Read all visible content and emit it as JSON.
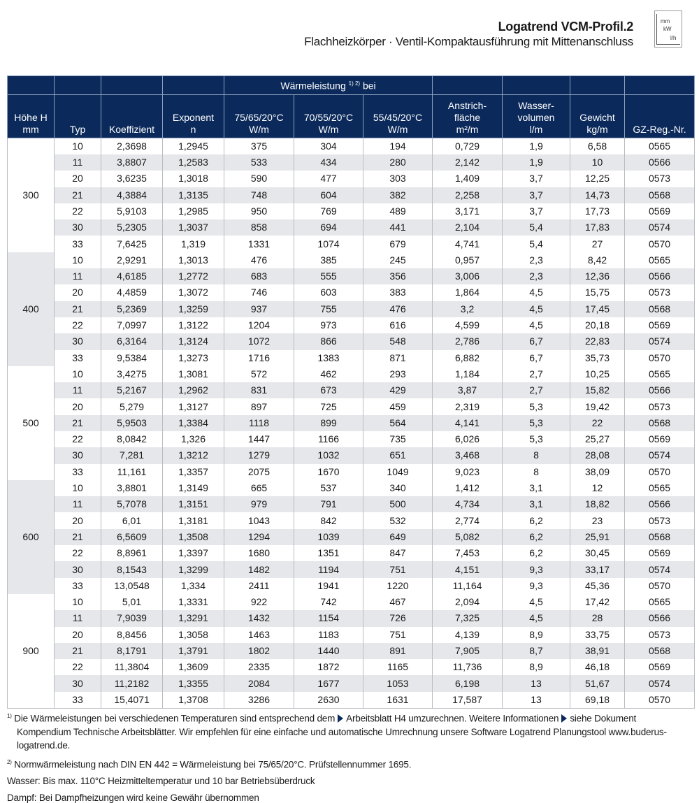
{
  "header": {
    "title": "Logatrend VCM-Profil.2",
    "subtitle": "Flachheizkörper · Ventil-Kompaktausführung mit Mittenanschluss",
    "icon": {
      "name": "units-icon",
      "labels": [
        "mm",
        "kW",
        "l/h"
      ]
    }
  },
  "table": {
    "group_header": "Wärmeleistung",
    "group_header_sup": "1) 2)",
    "group_header_suffix": "bei",
    "columns": [
      "Höhe H\nmm",
      "Typ",
      "Koeffizient",
      "Exponent\nn",
      "75/65/20°C\nW/m",
      "70/55/20°C\nW/m",
      "55/45/20°C\nW/m",
      "Anstrich-\nfläche\nm²/m",
      "Wasser-\nvolumen\nl/m",
      "Gewicht\nkg/m",
      "GZ-Reg.-Nr."
    ],
    "groups": [
      {
        "height": "300",
        "rows": [
          [
            "10",
            "2,3698",
            "1,2945",
            "375",
            "304",
            "194",
            "0,729",
            "1,9",
            "6,58",
            "0565"
          ],
          [
            "11",
            "3,8807",
            "1,2583",
            "533",
            "434",
            "280",
            "2,142",
            "1,9",
            "10",
            "0566"
          ],
          [
            "20",
            "3,6235",
            "1,3018",
            "590",
            "477",
            "303",
            "1,409",
            "3,7",
            "12,25",
            "0573"
          ],
          [
            "21",
            "4,3884",
            "1,3135",
            "748",
            "604",
            "382",
            "2,258",
            "3,7",
            "14,73",
            "0568"
          ],
          [
            "22",
            "5,9103",
            "1,2985",
            "950",
            "769",
            "489",
            "3,171",
            "3,7",
            "17,73",
            "0569"
          ],
          [
            "30",
            "5,2305",
            "1,3037",
            "858",
            "694",
            "441",
            "2,104",
            "5,4",
            "17,83",
            "0574"
          ],
          [
            "33",
            "7,6425",
            "1,319",
            "1331",
            "1074",
            "679",
            "4,741",
            "5,4",
            "27",
            "0570"
          ]
        ]
      },
      {
        "height": "400",
        "rows": [
          [
            "10",
            "2,9291",
            "1,3013",
            "476",
            "385",
            "245",
            "0,957",
            "2,3",
            "8,42",
            "0565"
          ],
          [
            "11",
            "4,6185",
            "1,2772",
            "683",
            "555",
            "356",
            "3,006",
            "2,3",
            "12,36",
            "0566"
          ],
          [
            "20",
            "4,4859",
            "1,3072",
            "746",
            "603",
            "383",
            "1,864",
            "4,5",
            "15,75",
            "0573"
          ],
          [
            "21",
            "5,2369",
            "1,3259",
            "937",
            "755",
            "476",
            "3,2",
            "4,5",
            "17,45",
            "0568"
          ],
          [
            "22",
            "7,0997",
            "1,3122",
            "1204",
            "973",
            "616",
            "4,599",
            "4,5",
            "20,18",
            "0569"
          ],
          [
            "30",
            "6,3164",
            "1,3124",
            "1072",
            "866",
            "548",
            "2,786",
            "6,7",
            "22,83",
            "0574"
          ],
          [
            "33",
            "9,5384",
            "1,3273",
            "1716",
            "1383",
            "871",
            "6,882",
            "6,7",
            "35,73",
            "0570"
          ]
        ]
      },
      {
        "height": "500",
        "rows": [
          [
            "10",
            "3,4275",
            "1,3081",
            "572",
            "462",
            "293",
            "1,184",
            "2,7",
            "10,25",
            "0565"
          ],
          [
            "11",
            "5,2167",
            "1,2962",
            "831",
            "673",
            "429",
            "3,87",
            "2,7",
            "15,82",
            "0566"
          ],
          [
            "20",
            "5,279",
            "1,3127",
            "897",
            "725",
            "459",
            "2,319",
            "5,3",
            "19,42",
            "0573"
          ],
          [
            "21",
            "5,9503",
            "1,3384",
            "1118",
            "899",
            "564",
            "4,141",
            "5,3",
            "22",
            "0568"
          ],
          [
            "22",
            "8,0842",
            "1,326",
            "1447",
            "1166",
            "735",
            "6,026",
            "5,3",
            "25,27",
            "0569"
          ],
          [
            "30",
            "7,281",
            "1,3212",
            "1279",
            "1032",
            "651",
            "3,468",
            "8",
            "28,08",
            "0574"
          ],
          [
            "33",
            "11,161",
            "1,3357",
            "2075",
            "1670",
            "1049",
            "9,023",
            "8",
            "38,09",
            "0570"
          ]
        ]
      },
      {
        "height": "600",
        "rows": [
          [
            "10",
            "3,8801",
            "1,3149",
            "665",
            "537",
            "340",
            "1,412",
            "3,1",
            "12",
            "0565"
          ],
          [
            "11",
            "5,7078",
            "1,3151",
            "979",
            "791",
            "500",
            "4,734",
            "3,1",
            "18,82",
            "0566"
          ],
          [
            "20",
            "6,01",
            "1,3181",
            "1043",
            "842",
            "532",
            "2,774",
            "6,2",
            "23",
            "0573"
          ],
          [
            "21",
            "6,5609",
            "1,3508",
            "1294",
            "1039",
            "649",
            "5,082",
            "6,2",
            "25,91",
            "0568"
          ],
          [
            "22",
            "8,8961",
            "1,3397",
            "1680",
            "1351",
            "847",
            "7,453",
            "6,2",
            "30,45",
            "0569"
          ],
          [
            "30",
            "8,1543",
            "1,3299",
            "1482",
            "1194",
            "751",
            "4,151",
            "9,3",
            "33,17",
            "0574"
          ],
          [
            "33",
            "13,0548",
            "1,334",
            "2411",
            "1941",
            "1220",
            "11,164",
            "9,3",
            "45,36",
            "0570"
          ]
        ]
      },
      {
        "height": "900",
        "rows": [
          [
            "10",
            "5,01",
            "1,3331",
            "922",
            "742",
            "467",
            "2,094",
            "4,5",
            "17,42",
            "0565"
          ],
          [
            "11",
            "7,9039",
            "1,3291",
            "1432",
            "1154",
            "726",
            "7,325",
            "4,5",
            "28",
            "0566"
          ],
          [
            "20",
            "8,8456",
            "1,3058",
            "1463",
            "1183",
            "751",
            "4,139",
            "8,9",
            "33,75",
            "0573"
          ],
          [
            "21",
            "8,1791",
            "1,3791",
            "1802",
            "1440",
            "891",
            "7,905",
            "8,7",
            "38,91",
            "0568"
          ],
          [
            "22",
            "11,3804",
            "1,3609",
            "2335",
            "1872",
            "1165",
            "11,736",
            "8,9",
            "46,18",
            "0569"
          ],
          [
            "30",
            "11,2182",
            "1,3355",
            "2084",
            "1677",
            "1053",
            "6,198",
            "13",
            "51,67",
            "0574"
          ],
          [
            "33",
            "15,4071",
            "1,3708",
            "3286",
            "2630",
            "1631",
            "17,587",
            "13",
            "69,18",
            "0570"
          ]
        ]
      }
    ]
  },
  "notes": {
    "fn1_mark": "1)",
    "fn1_a": "Die Wärmeleistungen bei verschiedenen Temperaturen sind entsprechend dem",
    "fn1_b": "Arbeitsblatt H4 umzurechnen. Weitere Informationen",
    "fn1_c": "siehe Dokument Kompendium Technische Arbeitsblätter. Wir empfehlen für eine einfache und automatische Umrechnung unsere Software Logatrend Planungstool www.buderus-logatrend.de.",
    "fn2_mark": "2)",
    "fn2": "Normwärmeleistung nach DIN EN 442 = Wärmeleistung bei 75/65/20°C. Prüfstellennummer 1695.",
    "water": "Wasser: Bis max. 110°C Heizmitteltemperatur und 10 bar Betriebsüberdruck",
    "steam": "Dampf: Bei Dampfheizungen wird keine Gewähr übernommen"
  }
}
